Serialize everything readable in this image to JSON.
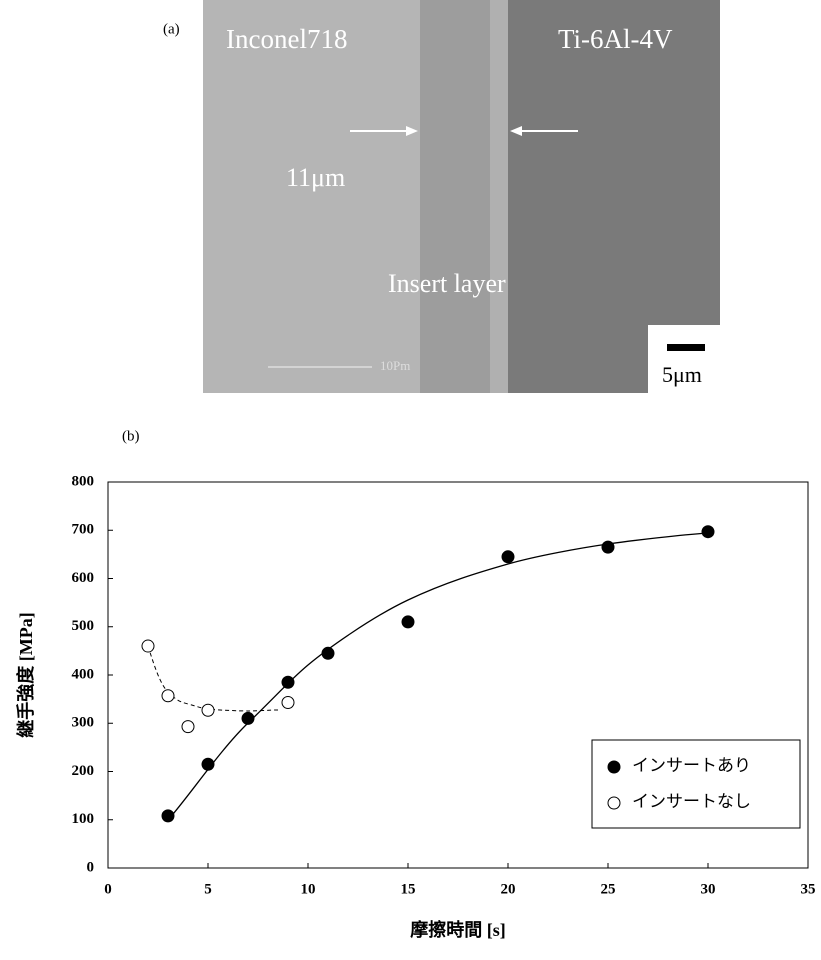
{
  "panel_a": {
    "label": "(a)",
    "left_material": "Inconel718",
    "right_material": "Ti-6Al-4V",
    "thickness": "11μm",
    "layer": "Insert layer",
    "image_scale": "10Pm",
    "scale_bar": "5μm"
  },
  "chart_data": {
    "type": "scatter",
    "label": "(b)",
    "x_label": "摩擦時間  [s]",
    "y_label": "継手強度  [MPa]",
    "xlim": [
      0,
      35
    ],
    "xticks": [
      0,
      5,
      10,
      15,
      20,
      25,
      30,
      35
    ],
    "ylim": [
      0,
      800
    ],
    "yticks": [
      0,
      100,
      200,
      300,
      400,
      500,
      600,
      700,
      800
    ],
    "legend": "lower right",
    "series": [
      {
        "name": "インサートあり",
        "color": "#000000",
        "filled": true,
        "x": [
          3,
          5,
          7,
          9,
          11,
          15,
          20,
          25,
          30
        ],
        "values": [
          108,
          215,
          310,
          385,
          445,
          510,
          645,
          665,
          697
        ]
      },
      {
        "name": "インサートなし",
        "color": "#000000",
        "filled": false,
        "x": [
          2,
          3,
          4,
          5,
          9
        ],
        "values": [
          460,
          357,
          293,
          327,
          343
        ]
      }
    ]
  }
}
